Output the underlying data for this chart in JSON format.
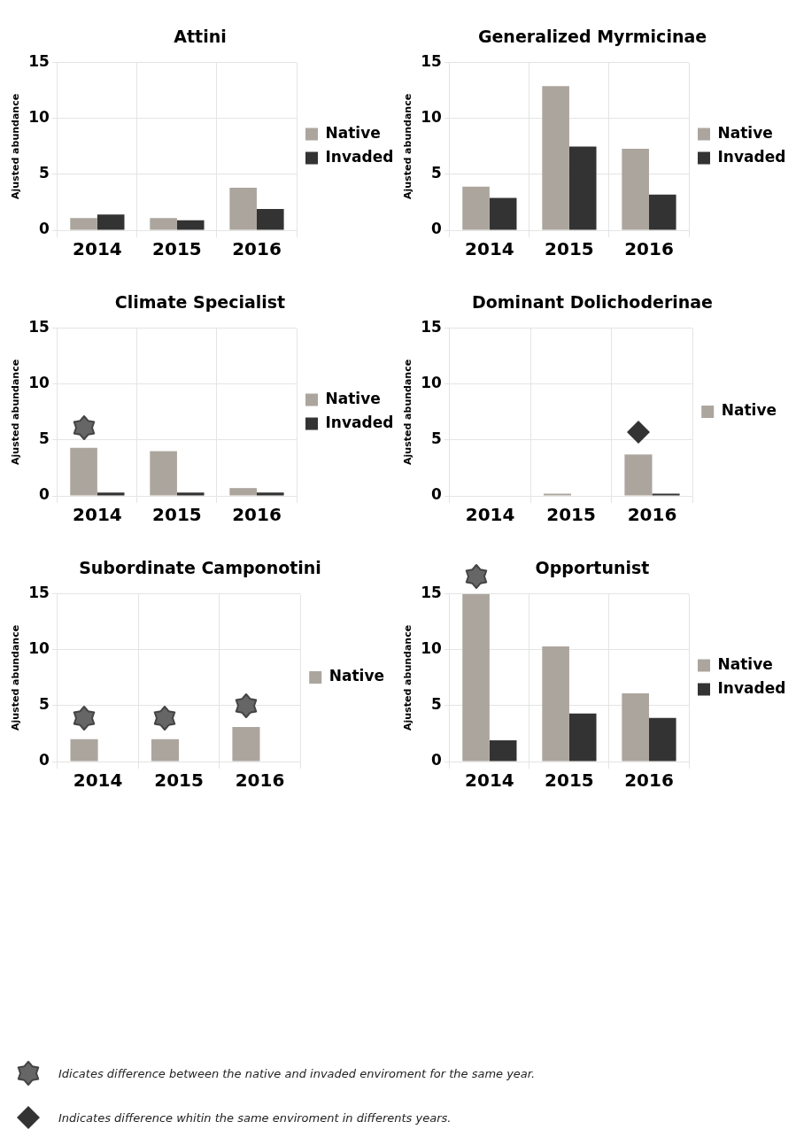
{
  "chart_data": [
    {
      "type": "bar",
      "title": "Attini",
      "ylabel": "Ajusted abundance",
      "categories": [
        "2014",
        "2015",
        "2016"
      ],
      "ylim": [
        0,
        15
      ],
      "yticks": [
        0,
        5,
        10,
        15
      ],
      "grid": true,
      "legend": "right",
      "series": [
        {
          "name": "Native",
          "color": "#aca59e",
          "values": [
            1.1,
            1.1,
            3.8
          ]
        },
        {
          "name": "Invaded",
          "color": "#333333",
          "values": [
            1.4,
            0.9,
            1.9
          ]
        }
      ]
    },
    {
      "type": "bar",
      "title": "Generalized Myrmicinae",
      "ylabel": "Ajusted abundance",
      "categories": [
        "2014",
        "2015",
        "2016"
      ],
      "ylim": [
        0,
        15
      ],
      "yticks": [
        0,
        5,
        10,
        15
      ],
      "grid": true,
      "legend": "right",
      "series": [
        {
          "name": "Native",
          "color": "#aca59e",
          "values": [
            3.9,
            12.9,
            7.3
          ]
        },
        {
          "name": "Invaded",
          "color": "#333333",
          "values": [
            2.9,
            7.5,
            3.2
          ]
        }
      ]
    },
    {
      "type": "bar",
      "title": "Climate Specialist",
      "ylabel": "Ajusted abundance",
      "categories": [
        "2014",
        "2015",
        "2016"
      ],
      "ylim": [
        0,
        15
      ],
      "yticks": [
        0,
        5,
        10,
        15
      ],
      "grid": true,
      "legend": "right",
      "series": [
        {
          "name": "Native",
          "color": "#aca59e",
          "values": [
            4.3,
            4.0,
            0.7
          ]
        },
        {
          "name": "Invaded",
          "color": "#333333",
          "values": [
            0.3,
            0.3,
            0.3
          ]
        }
      ]
    },
    {
      "type": "bar",
      "title": "Dominant Dolichoderinae",
      "ylabel": "Ajusted abundance",
      "categories": [
        "2014",
        "2015",
        "2016"
      ],
      "ylim": [
        0,
        15
      ],
      "yticks": [
        0,
        5,
        10,
        15
      ],
      "grid": true,
      "legend": "right",
      "series": [
        {
          "name": "Native",
          "color": "#aca59e",
          "values": [
            null,
            0.2,
            3.7
          ]
        },
        {
          "color": "#333333",
          "values": [
            null,
            null,
            0.2
          ]
        }
      ]
    },
    {
      "type": "bar",
      "title": "Subordinate Camponotini",
      "ylabel": "Ajusted abundance",
      "categories": [
        "2014",
        "2015",
        "2016"
      ],
      "ylim": [
        0,
        15
      ],
      "yticks": [
        0,
        5,
        10,
        15
      ],
      "grid": true,
      "legend": "right",
      "series": [
        {
          "name": "Native",
          "color": "#aca59e",
          "values": [
            2.0,
            2.0,
            3.1
          ]
        },
        {
          "color": "#333333",
          "values": [
            null,
            null,
            null
          ]
        }
      ]
    },
    {
      "type": "bar",
      "title": "Opportunist",
      "ylabel": "Ajusted abundance",
      "categories": [
        "2014",
        "2015",
        "2016"
      ],
      "ylim": [
        0,
        15
      ],
      "yticks": [
        0,
        5,
        10,
        15
      ],
      "grid": true,
      "legend": "right",
      "series": [
        {
          "name": "Native",
          "color": "#aca59e",
          "values": [
            15,
            10.3,
            6.1
          ]
        },
        {
          "name": "Invaded",
          "color": "#333333",
          "values": [
            1.9,
            4.3,
            3.9
          ]
        }
      ]
    },
    {
      "type": "other",
      "annotations": [
        "Idicates difference between the native and invaded enviroment for the same year.",
        "Indicates difference whitin the same enviroment in differents years."
      ]
    }
  ]
}
